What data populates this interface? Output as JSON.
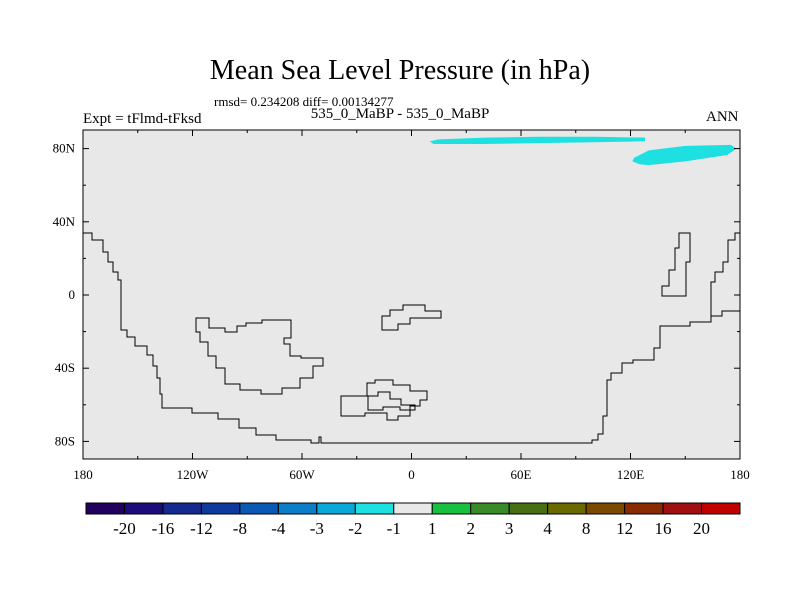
{
  "title": "Mean Sea Level Pressure (in hPa)",
  "stats_text": "rmsd= 0.234208 diff= 0.00134277",
  "left_label": "Expt = tFlmd-tFksd",
  "center_label": "535_0_MaBP - 535_0_MaBP",
  "right_label": "ANN",
  "colors": {
    "ocean_fill": "#e8e8e8",
    "anomaly_fill": "#1ee0e0",
    "coastline": "#000000"
  },
  "chart_data": {
    "type": "map",
    "projection": "cylindrical-equidistant",
    "lon_range": [
      -180,
      180
    ],
    "lat_range": [
      -90,
      90
    ],
    "x_ticks": [
      {
        "value": -180,
        "label": "180"
      },
      {
        "value": -120,
        "label": "120W"
      },
      {
        "value": -60,
        "label": "60W"
      },
      {
        "value": 0,
        "label": "0"
      },
      {
        "value": 60,
        "label": "60E"
      },
      {
        "value": 120,
        "label": "120E"
      },
      {
        "value": 180,
        "label": "180"
      }
    ],
    "y_ticks": [
      {
        "value": 80,
        "label": "80N"
      },
      {
        "value": 40,
        "label": "40N"
      },
      {
        "value": 0,
        "label": "0"
      },
      {
        "value": -40,
        "label": "40S"
      },
      {
        "value": -80,
        "label": "80S"
      }
    ],
    "anomaly_regions": [
      {
        "category": "-2 to -1",
        "lon": [
          10,
          15,
          40,
          70,
          100,
          128,
          128,
          100,
          70,
          40,
          12,
          10
        ],
        "lat": [
          84,
          85,
          86,
          86.5,
          86.5,
          86,
          84,
          83.5,
          83,
          82.5,
          82.5,
          84
        ]
      },
      {
        "category": "-2 to -1",
        "lon": [
          122,
          130,
          150,
          175,
          178,
          173,
          150,
          130,
          125,
          121
        ],
        "lat": [
          75,
          79,
          81.5,
          82,
          80,
          76.5,
          73,
          71,
          71.5,
          73
        ]
      }
    ],
    "colorbar": {
      "labels": [
        "-20",
        "-16",
        "-12",
        "-8",
        "-4",
        "-3",
        "-2",
        "-1",
        "1",
        "2",
        "3",
        "4",
        "8",
        "12",
        "16",
        "20"
      ],
      "colors": [
        "#21005e",
        "#1c0e7a",
        "#152a8f",
        "#0e3a9e",
        "#0a5ab5",
        "#0a7ec8",
        "#08a8d8",
        "#1ee0e0",
        "#e8e8e8",
        "#18c040",
        "#3a8a2a",
        "#4a6e14",
        "#6a6a00",
        "#7a4a00",
        "#8a2a00",
        "#a01010",
        "#c00000"
      ]
    }
  }
}
